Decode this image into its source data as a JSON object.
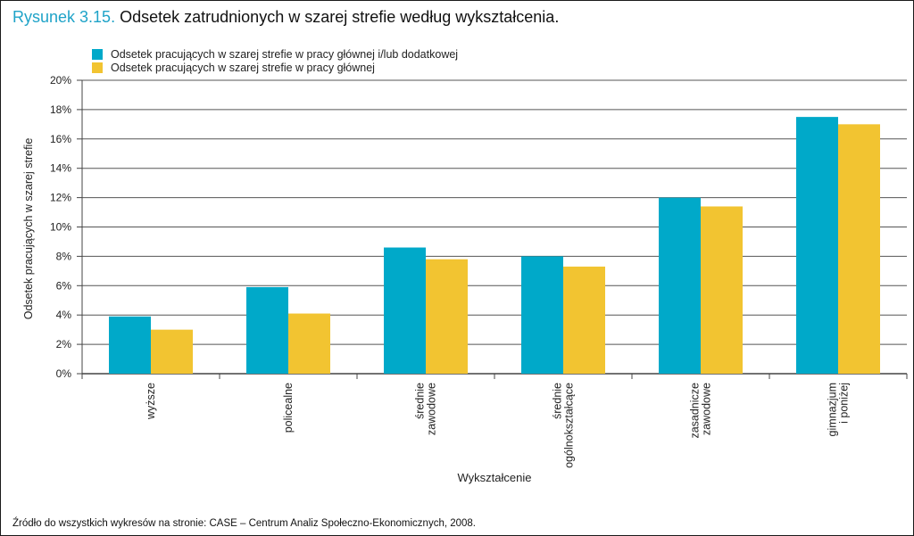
{
  "caption": {
    "figure_number": "Rysunek 3.15.",
    "title": "Odsetek zatrudnionych w szarej strefie według wykształcenia."
  },
  "colors": {
    "figure_number": "#1fa3c8",
    "series_main_or_additional": "#00a9c9",
    "series_main": "#f2c431",
    "grid": "#555555"
  },
  "source_note": "Źródło do wszystkich wykresów na stronie: CASE – Centrum Analiz Społeczno-Ekonomicznych, 2008.",
  "chart_data": {
    "type": "bar",
    "xlabel": "Wykształcenie",
    "ylabel": "Odsetek pracujących w szarej strefie",
    "ylim": [
      0,
      20
    ],
    "yticks": [
      "0%",
      "2%",
      "4%",
      "6%",
      "8%",
      "10%",
      "12%",
      "14%",
      "16%",
      "18%",
      "20%"
    ],
    "grid": true,
    "legend_position": "top-left",
    "categories": [
      [
        "wyższe"
      ],
      [
        "policealne"
      ],
      [
        "średnie",
        "zawodowe"
      ],
      [
        "średnie",
        "ogólnokształcące"
      ],
      [
        "zasadnicze",
        "zawodowe"
      ],
      [
        "gimnazjum",
        "i poniżej"
      ]
    ],
    "series": [
      {
        "name": "Odsetek pracujących w szarej strefie w pracy głównej i/lub dodatkowej",
        "color": "#00a9c9",
        "values": [
          3.9,
          5.9,
          8.6,
          8.0,
          12.0,
          17.5
        ]
      },
      {
        "name": "Odsetek pracujących w szarej strefie w pracy głównej",
        "color": "#f2c431",
        "values": [
          3.0,
          4.1,
          7.8,
          7.3,
          11.4,
          17.0
        ]
      }
    ]
  }
}
